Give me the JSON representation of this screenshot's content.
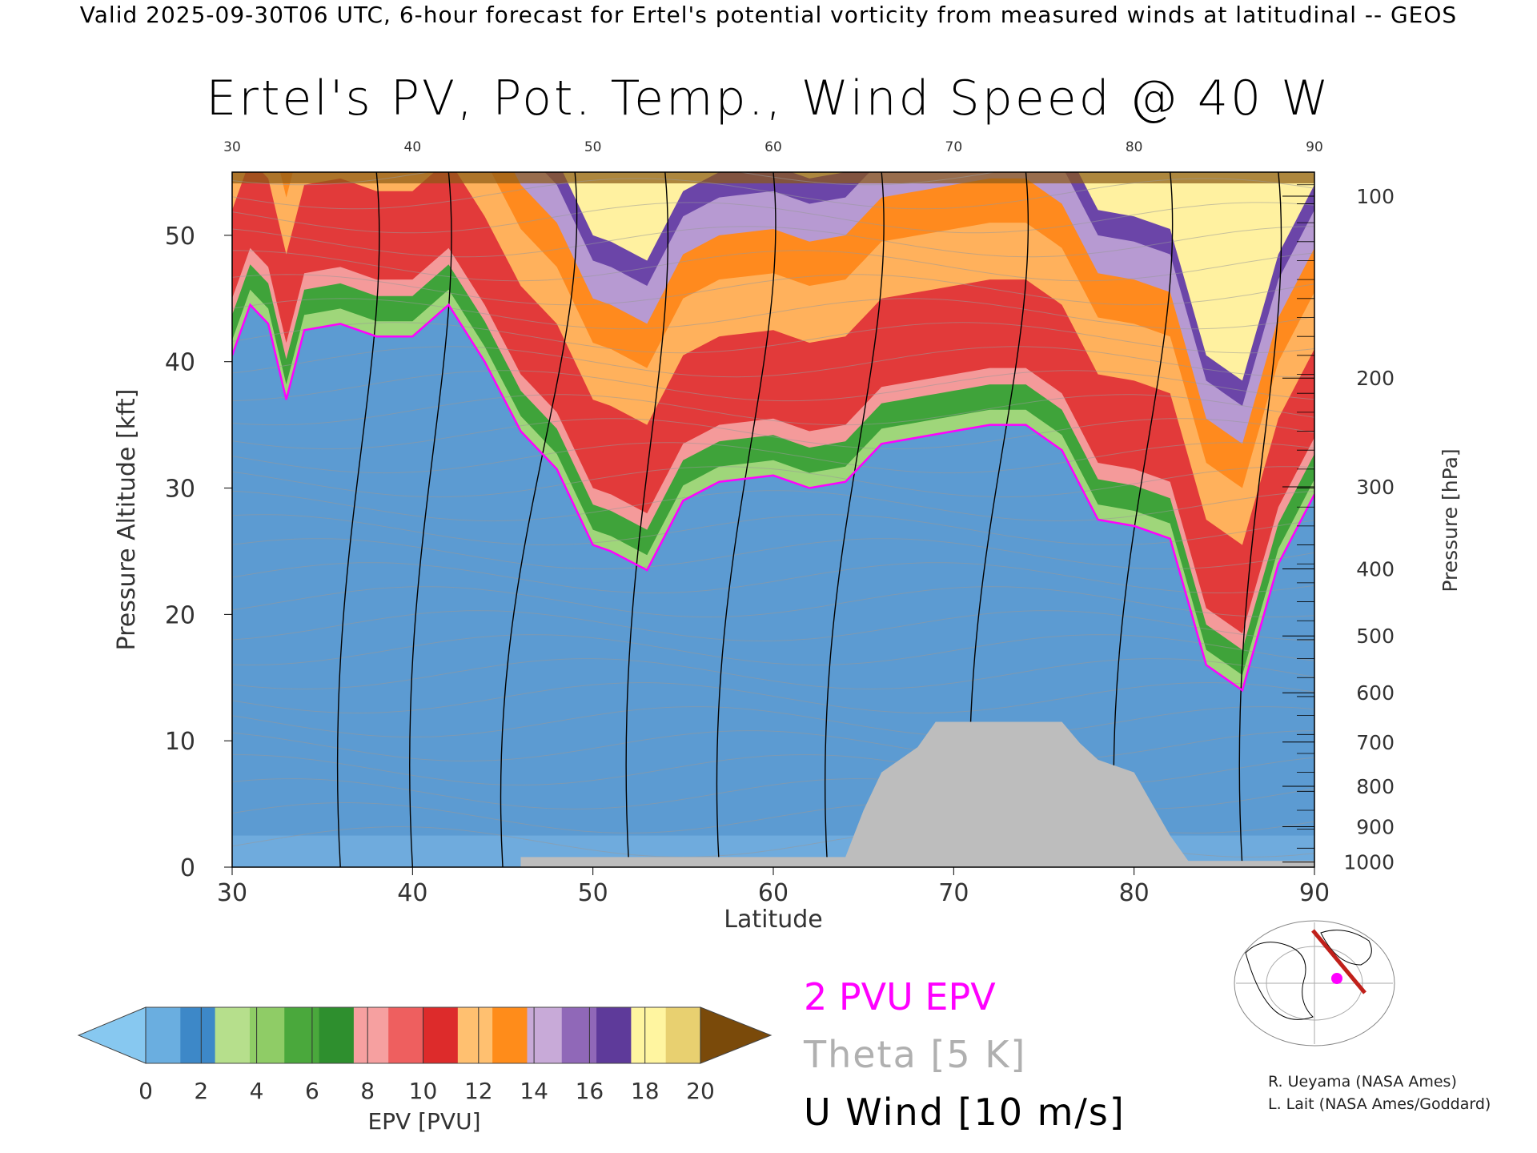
{
  "header": "Valid 2025-09-30T06 UTC, 6-hour forecast for Ertel's potential vorticity from measured winds at latitudinal -- GEOS",
  "chart_data": {
    "type": "heatmap",
    "title": "Ertel's PV, Pot. Temp., Wind Speed @ 40 W",
    "xlabel": "Latitude",
    "ylabel": "Pressure Altitude [kft]",
    "y2label": "Pressure [hPa]",
    "xlim": [
      30,
      90
    ],
    "ylim": [
      0,
      55
    ],
    "x_ticks": [
      "30",
      "40",
      "50",
      "60",
      "70",
      "80",
      "90"
    ],
    "x_top_ticks": [
      "30",
      "40",
      "50",
      "60",
      "70",
      "80",
      "90"
    ],
    "y_ticks": [
      "0",
      "10",
      "20",
      "30",
      "40",
      "50"
    ],
    "pressure_ticks": [
      {
        "label": "100",
        "kft": 53.1
      },
      {
        "label": "200",
        "kft": 38.7
      },
      {
        "label": "300",
        "kft": 30.1
      },
      {
        "label": "400",
        "kft": 23.6
      },
      {
        "label": "500",
        "kft": 18.3
      },
      {
        "label": "600",
        "kft": 13.8
      },
      {
        "label": "700",
        "kft": 9.9
      },
      {
        "label": "800",
        "kft": 6.4
      },
      {
        "label": "900",
        "kft": 3.2
      },
      {
        "label": "1000",
        "kft": 0.4
      }
    ],
    "tropopause_2pvu_kft": [
      [
        30,
        40.5
      ],
      [
        31,
        44.5
      ],
      [
        32,
        43.0
      ],
      [
        33,
        37.0
      ],
      [
        34,
        42.5
      ],
      [
        36,
        43.0
      ],
      [
        38,
        42.0
      ],
      [
        40,
        42.0
      ],
      [
        42,
        44.5
      ],
      [
        44,
        40.0
      ],
      [
        46,
        34.5
      ],
      [
        48,
        31.5
      ],
      [
        50,
        25.5
      ],
      [
        51,
        25.0
      ],
      [
        53,
        23.5
      ],
      [
        55,
        29.0
      ],
      [
        57,
        30.5
      ],
      [
        60,
        31.0
      ],
      [
        62,
        30.0
      ],
      [
        64,
        30.5
      ],
      [
        66,
        33.5
      ],
      [
        68,
        34.0
      ],
      [
        70,
        34.5
      ],
      [
        72,
        35.0
      ],
      [
        74,
        35.0
      ],
      [
        76,
        33.0
      ],
      [
        78,
        27.5
      ],
      [
        80,
        27.0
      ],
      [
        82,
        26.0
      ],
      [
        84,
        16.0
      ],
      [
        86,
        14.0
      ],
      [
        88,
        24.0
      ],
      [
        90,
        29.5
      ]
    ],
    "terrain_kft": [
      [
        46,
        0.8
      ],
      [
        64,
        0.8
      ],
      [
        65,
        4.5
      ],
      [
        66,
        7.5
      ],
      [
        67,
        8.5
      ],
      [
        68,
        9.5
      ],
      [
        69,
        11.5
      ],
      [
        76,
        11.5
      ],
      [
        77,
        9.8
      ],
      [
        78,
        8.5
      ],
      [
        80,
        7.5
      ],
      [
        82,
        2.5
      ],
      [
        83,
        0.5
      ],
      [
        90,
        0.5
      ]
    ],
    "colorbar": {
      "label": "EPV [PVU]",
      "ticks": [
        "0",
        "2",
        "4",
        "6",
        "8",
        "10",
        "12",
        "14",
        "16",
        "18",
        "20"
      ],
      "colors": [
        "#87c8f0",
        "#6aaee0",
        "#3d88c8",
        "#b6df8c",
        "#8fcc66",
        "#4aa83c",
        "#2e8f2e",
        "#f6a0a0",
        "#ee5f5f",
        "#dd2b2b",
        "#ffc070",
        "#ff8c1a",
        "#c8aad8",
        "#9068b8",
        "#5e3a9a",
        "#fff5a0",
        "#e8d070",
        "#7a4a0a"
      ]
    }
  },
  "legend": {
    "pvu": "2 PVU EPV",
    "theta": "Theta [5 K]",
    "uwind": "U Wind [10 m/s]"
  },
  "credits": {
    "line1": "R. Ueyama (NASA Ames)",
    "line2": "L. Lait (NASA Ames/Goddard)"
  }
}
